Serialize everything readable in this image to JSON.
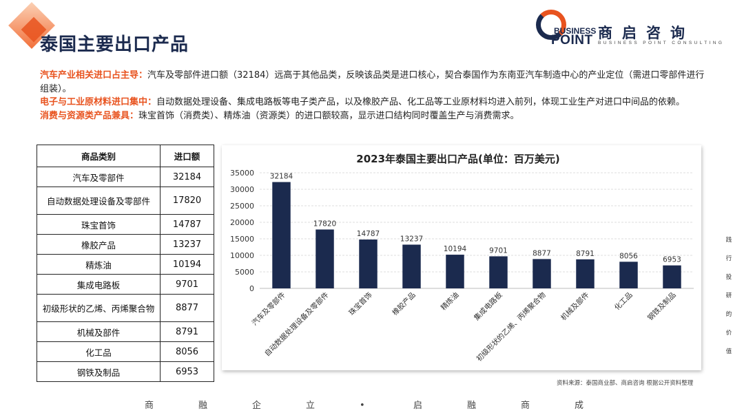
{
  "page": {
    "title": "泰国主要出口产品",
    "source": "资料来源：泰国商业部、商启咨询 根据公开资料整理",
    "motto": [
      "商",
      "融",
      "企",
      "立",
      "•",
      "启",
      "融",
      "商",
      "成"
    ],
    "side_text": [
      "践",
      "行",
      "投",
      "研",
      "的",
      "价",
      "值"
    ]
  },
  "logo": {
    "en_line1": "BUSINESS",
    "en_line2": "POINT",
    "cn": "商启咨询",
    "subtitle": "BUSINESS POINT CONSULTING"
  },
  "summary": [
    {
      "head": "汽车产业相关进口占主导：",
      "body": "汽车及零部件进口额（32184）远高于其他品类，反映该品类是进口核心，契合泰国作为东南亚汽车制造中心的产业定位（需进口零部件进行组装）。"
    },
    {
      "head": "电子与工业原材料进口集中：",
      "body": "自动数据处理设备、集成电路板等电子类产品，以及橡胶产品、化工品等工业原材料均进入前列，体现工业生产对进口中间品的依赖。"
    },
    {
      "head": "消费与资源类产品兼具：",
      "body": "珠宝首饰（消费类）、精炼油（资源类）的进口额较高，显示进口结构同时覆盖生产与消费需求。"
    }
  ],
  "table": {
    "headers": [
      "商品类别",
      "进口额"
    ],
    "rows": [
      [
        "汽车及零部件",
        "32184"
      ],
      [
        "自动数据处理设备及零部件",
        "17820"
      ],
      [
        "珠宝首饰",
        "14787"
      ],
      [
        "橡胶产品",
        "13237"
      ],
      [
        "精炼油",
        "10194"
      ],
      [
        "集成电路板",
        "9701"
      ],
      [
        "初级形状的乙烯、丙烯聚合物",
        "8877"
      ],
      [
        "机械及部件",
        "8791"
      ],
      [
        "化工品",
        "8056"
      ],
      [
        "钢铁及制品",
        "6953"
      ]
    ]
  },
  "chart_data": {
    "type": "bar",
    "title": "2023年泰国主要出口产品(单位：百万美元)",
    "categories": [
      "汽车及零部件",
      "自动数据处理设备及零部件",
      "珠宝首饰",
      "橡胶产品",
      "精炼油",
      "集成电路板",
      "初级形状的乙烯、丙烯聚合物",
      "机械及部件",
      "化工品",
      "钢铁及制品"
    ],
    "values": [
      32184,
      17820,
      14787,
      13237,
      10194,
      9701,
      8877,
      8791,
      8056,
      6953
    ],
    "yticks": [
      "0",
      "5000",
      "10000",
      "15000",
      "20000",
      "25000",
      "30000",
      "35000"
    ],
    "ylim": [
      0,
      35000
    ],
    "grid": true,
    "legend": "none",
    "bar_color": "#1b2a4e",
    "xlabel": "",
    "ylabel": ""
  }
}
